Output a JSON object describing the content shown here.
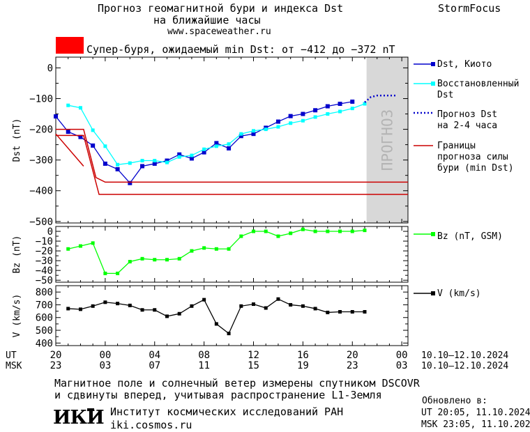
{
  "header": {
    "line1": "Прогноз геомагнитной бури и индекса Dst",
    "line2": "на ближайшие часы",
    "line3": "www.spaceweather.ru",
    "brand": "StormFocus"
  },
  "alert": {
    "text": "Супер-буря, ожидаемый min Dst: от −412 до −372 nT",
    "color": "#ff0000"
  },
  "footer": {
    "line1": "Магнитное поле и солнечный ветер измерены спутником DSCOVR",
    "line2": "и сдвинуты вперед, учитывая распространение L1-Земля",
    "institute": "Институт космических исследований РАН",
    "site": "iki.cosmos.ru",
    "logo": "ИКИ",
    "updated_label": "Обновлено в:",
    "updated_ut": "UT  20:05, 11.10.2024",
    "updated_msk": "MSK 23:05, 11.10.2024"
  },
  "chart_data": [
    {
      "type": "line",
      "panel": "dst",
      "ylabel": "Dst (nT)",
      "ylim": [
        -505,
        35
      ],
      "yticks": [
        0,
        -100,
        -200,
        -300,
        -400,
        -500
      ],
      "ytick_labels": [
        "0",
        "−100",
        "−200",
        "−300",
        "−400",
        "−500"
      ],
      "forecast_label": "ПРОГНОЗ",
      "series": [
        {
          "name": "Dst, Киото",
          "color": "#0000cc",
          "marker": "square",
          "x": [
            20,
            21,
            22,
            23,
            24,
            25,
            26,
            27,
            28,
            29,
            30,
            31,
            32,
            33,
            34,
            35,
            36,
            37,
            38,
            39,
            40,
            41,
            42,
            43,
            44,
            45
          ],
          "y": [
            -158,
            -208,
            -225,
            -253,
            -312,
            -330,
            -375,
            -320,
            -312,
            -302,
            -282,
            -295,
            -275,
            -245,
            -262,
            -222,
            -215,
            -195,
            -175,
            -157,
            -150,
            -138,
            -125,
            -117,
            -110,
            null
          ]
        },
        {
          "name": "Восстановленный Dst",
          "color": "#00ffff",
          "marker": "square",
          "x": [
            20,
            21,
            22,
            23,
            24,
            25,
            26,
            27,
            28,
            29,
            30,
            31,
            32,
            33,
            34,
            35,
            36,
            37,
            38,
            39,
            40,
            41,
            42,
            43,
            44,
            45
          ],
          "y": [
            null,
            -122,
            -130,
            -203,
            -255,
            -315,
            -310,
            -302,
            -302,
            -308,
            -290,
            -285,
            -265,
            -255,
            -248,
            -215,
            -205,
            -200,
            -192,
            -180,
            -172,
            -160,
            -150,
            -142,
            -132,
            -117
          ]
        },
        {
          "name": "Прогноз Dst на 2-4 часа",
          "color": "#0000cc",
          "style": "dotted",
          "x": [
            45,
            45.5,
            46,
            47,
            47.5
          ],
          "y": [
            -112,
            -95,
            -90,
            -90,
            -90
          ]
        },
        {
          "name": "Границы прогноза силы бури (min Dst)",
          "color": "#cc0000",
          "bounds": [
            {
              "x": [
                20,
                22.25,
                23.25,
                24.0,
                48.5
              ],
              "y": [
                -200,
                -200,
                -357,
                -372,
                -372
              ]
            },
            {
              "x": [
                20,
                22.25,
                23.5,
                48.5
              ],
              "y": [
                -220,
                -220,
                -412,
                -412
              ]
            },
            {
              "x": [
                20,
                22.25
              ],
              "y": [
                -215,
                -320
              ]
            }
          ]
        }
      ]
    },
    {
      "type": "line",
      "panel": "bz",
      "ylabel": "Bz (nT)",
      "ylim": [
        -52,
        5
      ],
      "yticks": [
        0,
        -10,
        -20,
        -30,
        -40,
        -50
      ],
      "ytick_labels": [
        "0",
        "−10",
        "−20",
        "−30",
        "−40",
        "−50"
      ],
      "series": [
        {
          "name": "Bz (nT, GSM)",
          "color": "#00ff00",
          "marker": "square",
          "x": [
            21,
            22,
            23,
            24,
            25,
            26,
            27,
            28,
            29,
            30,
            31,
            32,
            33,
            34,
            35,
            36,
            37,
            38,
            39,
            40,
            41,
            42,
            43,
            44,
            45
          ],
          "y": [
            -18,
            -15,
            -12,
            -43,
            -43,
            -31,
            -28,
            -29,
            -29,
            -28,
            -20,
            -17,
            -18,
            -18,
            -5,
            0,
            0,
            -5,
            -2,
            2,
            0,
            0,
            0,
            0,
            1
          ]
        }
      ]
    },
    {
      "type": "line",
      "panel": "v",
      "ylabel": "V (km/s)",
      "ylim": [
        380,
        850
      ],
      "yticks": [
        800,
        700,
        600,
        500,
        400
      ],
      "ytick_labels": [
        "800",
        "700",
        "600",
        "500",
        "400"
      ],
      "series": [
        {
          "name": "V (km/s)",
          "color": "#000000",
          "marker": "square",
          "x": [
            21,
            22,
            23,
            24,
            25,
            26,
            27,
            28,
            29,
            30,
            31,
            32,
            33,
            34,
            35,
            36,
            37,
            38,
            39,
            40,
            41,
            42,
            43,
            44,
            45
          ],
          "y": [
            670,
            665,
            690,
            720,
            710,
            695,
            660,
            660,
            610,
            630,
            690,
            740,
            550,
            475,
            690,
            705,
            675,
            745,
            700,
            690,
            670,
            640,
            645,
            645,
            645
          ]
        }
      ]
    }
  ],
  "xaxis": {
    "ut_label": "UT",
    "msk_label": "MSK",
    "ut_ticks": [
      "20",
      "00",
      "04",
      "08",
      "12",
      "16",
      "20",
      "00"
    ],
    "msk_ticks": [
      "23",
      "03",
      "07",
      "11",
      "15",
      "19",
      "23",
      "03"
    ],
    "range_ut": "10.10–12.10.2024",
    "range_msk": "10.10–12.10.2024"
  }
}
